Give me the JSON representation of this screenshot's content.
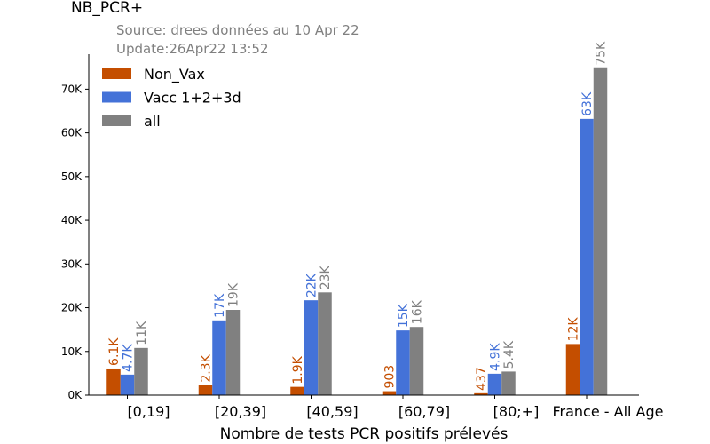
{
  "chart_data": {
    "type": "bar",
    "title": "NB_PCR+",
    "subtitle_lines": [
      "Source: drees données au 10 Apr 22",
      "Update:26Apr22 13:52"
    ],
    "xlabel": "Nombre de tests PCR positifs prélevés",
    "ylabel": "",
    "categories": [
      "[0,19]",
      "[20,39]",
      "[40,59]",
      "[60,79]",
      "[80;+]",
      "France - All Age"
    ],
    "ylim": [
      0,
      78000
    ],
    "yticks": [
      0,
      10000,
      20000,
      30000,
      40000,
      50000,
      60000,
      70000
    ],
    "ytick_labels": [
      "0K",
      "10K",
      "20K",
      "30K",
      "40K",
      "50K",
      "60K",
      "70K"
    ],
    "legend_position": "top-left",
    "grid": false,
    "series": [
      {
        "name": "Non_Vax",
        "color": "#c44e00",
        "values": [
          6100,
          2300,
          1900,
          903,
          437,
          11700
        ],
        "labels": [
          "6.1K",
          "2.3K",
          "1.9K",
          "903",
          "437",
          "12K"
        ]
      },
      {
        "name": "Vacc 1+2+3d",
        "color": "#4472d8",
        "values": [
          4700,
          17100,
          21700,
          14800,
          4900,
          63200
        ],
        "labels": [
          "4.7K",
          "17K",
          "22K",
          "15K",
          "4.9K",
          "63K"
        ]
      },
      {
        "name": "all",
        "color": "#808080",
        "values": [
          10800,
          19500,
          23500,
          15600,
          5400,
          74800
        ],
        "labels": [
          "11K",
          "19K",
          "23K",
          "16K",
          "5.4K",
          "75K"
        ]
      }
    ]
  }
}
